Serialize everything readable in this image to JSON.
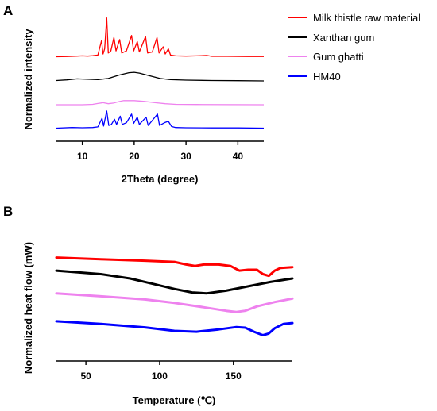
{
  "chart_data": [
    {
      "panel_label": "A",
      "type": "line",
      "xlabel": "2Theta  (degree)",
      "ylabel": "Normalized intensity",
      "xlim": [
        5,
        45
      ],
      "xticks": [
        10,
        20,
        30,
        40
      ],
      "grid": false,
      "legend_placement": "top-right",
      "series": [
        {
          "name": "Milk thistle raw material",
          "color": "#ff0000",
          "offset": 3.0,
          "points": [
            [
              5,
              0.02
            ],
            [
              7,
              0.03
            ],
            [
              9,
              0.05
            ],
            [
              10,
              0.06
            ],
            [
              11,
              0.05
            ],
            [
              12,
              0.07
            ],
            [
              13,
              0.1
            ],
            [
              13.7,
              0.8
            ],
            [
              14.0,
              0.15
            ],
            [
              14.3,
              0.4
            ],
            [
              14.7,
              1.9
            ],
            [
              15.0,
              0.2
            ],
            [
              15.5,
              0.3
            ],
            [
              16.1,
              0.95
            ],
            [
              16.5,
              0.3
            ],
            [
              17.2,
              0.85
            ],
            [
              17.6,
              0.2
            ],
            [
              18.5,
              0.3
            ],
            [
              19.5,
              1.05
            ],
            [
              19.9,
              0.3
            ],
            [
              20.6,
              0.75
            ],
            [
              21.0,
              0.25
            ],
            [
              22.2,
              1.0
            ],
            [
              22.6,
              0.2
            ],
            [
              23.5,
              0.25
            ],
            [
              24.4,
              0.95
            ],
            [
              24.8,
              0.2
            ],
            [
              25.6,
              0.5
            ],
            [
              26.0,
              0.15
            ],
            [
              26.6,
              0.4
            ],
            [
              27.0,
              0.1
            ],
            [
              28,
              0.06
            ],
            [
              30,
              0.05
            ],
            [
              32,
              0.06
            ],
            [
              34,
              0.08
            ],
            [
              35,
              0.04
            ],
            [
              38,
              0.04
            ],
            [
              42,
              0.03
            ],
            [
              45,
              0.03
            ]
          ]
        },
        {
          "name": "Xanthan gum",
          "color": "#000000",
          "offset": 2.0,
          "points": [
            [
              5,
              0.02
            ],
            [
              7,
              0.05
            ],
            [
              9,
              0.1
            ],
            [
              11,
              0.08
            ],
            [
              13,
              0.06
            ],
            [
              15,
              0.12
            ],
            [
              17,
              0.28
            ],
            [
              19,
              0.4
            ],
            [
              20,
              0.42
            ],
            [
              21,
              0.38
            ],
            [
              23,
              0.25
            ],
            [
              25,
              0.12
            ],
            [
              27,
              0.06
            ],
            [
              30,
              0.04
            ],
            [
              35,
              0.02
            ],
            [
              40,
              0.01
            ],
            [
              45,
              0.0
            ]
          ]
        },
        {
          "name": "Gum ghatti",
          "color": "#ee82ee",
          "offset": 1.0,
          "points": [
            [
              5,
              0.0
            ],
            [
              10,
              0.0
            ],
            [
              12,
              0.02
            ],
            [
              13,
              0.06
            ],
            [
              14,
              0.1
            ],
            [
              15,
              0.05
            ],
            [
              16,
              0.08
            ],
            [
              17,
              0.15
            ],
            [
              18,
              0.2
            ],
            [
              20,
              0.2
            ],
            [
              22,
              0.16
            ],
            [
              24,
              0.1
            ],
            [
              26,
              0.05
            ],
            [
              28,
              0.02
            ],
            [
              32,
              0.01
            ],
            [
              45,
              0.0
            ]
          ]
        },
        {
          "name": "HM40",
          "color": "#0000ff",
          "offset": 0.0,
          "points": [
            [
              5,
              0.02
            ],
            [
              8,
              0.05
            ],
            [
              10,
              0.04
            ],
            [
              12,
              0.05
            ],
            [
              13,
              0.08
            ],
            [
              13.8,
              0.5
            ],
            [
              14.1,
              0.12
            ],
            [
              14.7,
              0.85
            ],
            [
              15.1,
              0.15
            ],
            [
              15.6,
              0.2
            ],
            [
              16.2,
              0.45
            ],
            [
              16.6,
              0.2
            ],
            [
              17.3,
              0.6
            ],
            [
              17.7,
              0.2
            ],
            [
              18.5,
              0.28
            ],
            [
              19.5,
              0.7
            ],
            [
              19.9,
              0.25
            ],
            [
              20.6,
              0.55
            ],
            [
              21.0,
              0.2
            ],
            [
              22.3,
              0.55
            ],
            [
              22.7,
              0.15
            ],
            [
              24.5,
              0.7
            ],
            [
              24.9,
              0.15
            ],
            [
              26.0,
              0.3
            ],
            [
              26.6,
              0.35
            ],
            [
              27.2,
              0.1
            ],
            [
              28,
              0.05
            ],
            [
              30,
              0.04
            ],
            [
              35,
              0.03
            ],
            [
              40,
              0.03
            ],
            [
              45,
              0.02
            ]
          ]
        }
      ]
    },
    {
      "panel_label": "B",
      "type": "line",
      "xlabel": "Temperature (℃)",
      "ylabel": "Normalized heat flow (mW)",
      "xlim": [
        30,
        190
      ],
      "xticks": [
        50,
        100,
        150
      ],
      "grid": false,
      "series": [
        {
          "color": "#ff0000",
          "points": [
            [
              30,
              3.2
            ],
            [
              60,
              3.1
            ],
            [
              90,
              3.02
            ],
            [
              110,
              2.95
            ],
            [
              118,
              2.8
            ],
            [
              124,
              2.72
            ],
            [
              130,
              2.8
            ],
            [
              140,
              2.8
            ],
            [
              148,
              2.72
            ],
            [
              154,
              2.45
            ],
            [
              160,
              2.5
            ],
            [
              166,
              2.5
            ],
            [
              170,
              2.25
            ],
            [
              174,
              2.15
            ],
            [
              178,
              2.45
            ],
            [
              182,
              2.6
            ],
            [
              190,
              2.65
            ]
          ]
        },
        {
          "color": "#000000",
          "points": [
            [
              30,
              2.45
            ],
            [
              60,
              2.25
            ],
            [
              80,
              2.0
            ],
            [
              95,
              1.7
            ],
            [
              110,
              1.4
            ],
            [
              122,
              1.2
            ],
            [
              132,
              1.15
            ],
            [
              145,
              1.3
            ],
            [
              160,
              1.55
            ],
            [
              175,
              1.8
            ],
            [
              190,
              2.0
            ]
          ]
        },
        {
          "color": "#ee82ee",
          "points": [
            [
              30,
              1.15
            ],
            [
              60,
              0.98
            ],
            [
              90,
              0.8
            ],
            [
              110,
              0.6
            ],
            [
              130,
              0.35
            ],
            [
              145,
              0.15
            ],
            [
              152,
              0.08
            ],
            [
              158,
              0.15
            ],
            [
              166,
              0.4
            ],
            [
              178,
              0.65
            ],
            [
              190,
              0.85
            ]
          ]
        },
        {
          "color": "#0000ff",
          "points": [
            [
              30,
              -0.45
            ],
            [
              60,
              -0.6
            ],
            [
              90,
              -0.8
            ],
            [
              110,
              -1.0
            ],
            [
              125,
              -1.05
            ],
            [
              140,
              -0.92
            ],
            [
              152,
              -0.78
            ],
            [
              158,
              -0.82
            ],
            [
              164,
              -1.05
            ],
            [
              170,
              -1.25
            ],
            [
              174,
              -1.15
            ],
            [
              178,
              -0.85
            ],
            [
              184,
              -0.6
            ],
            [
              190,
              -0.55
            ]
          ]
        }
      ]
    }
  ]
}
